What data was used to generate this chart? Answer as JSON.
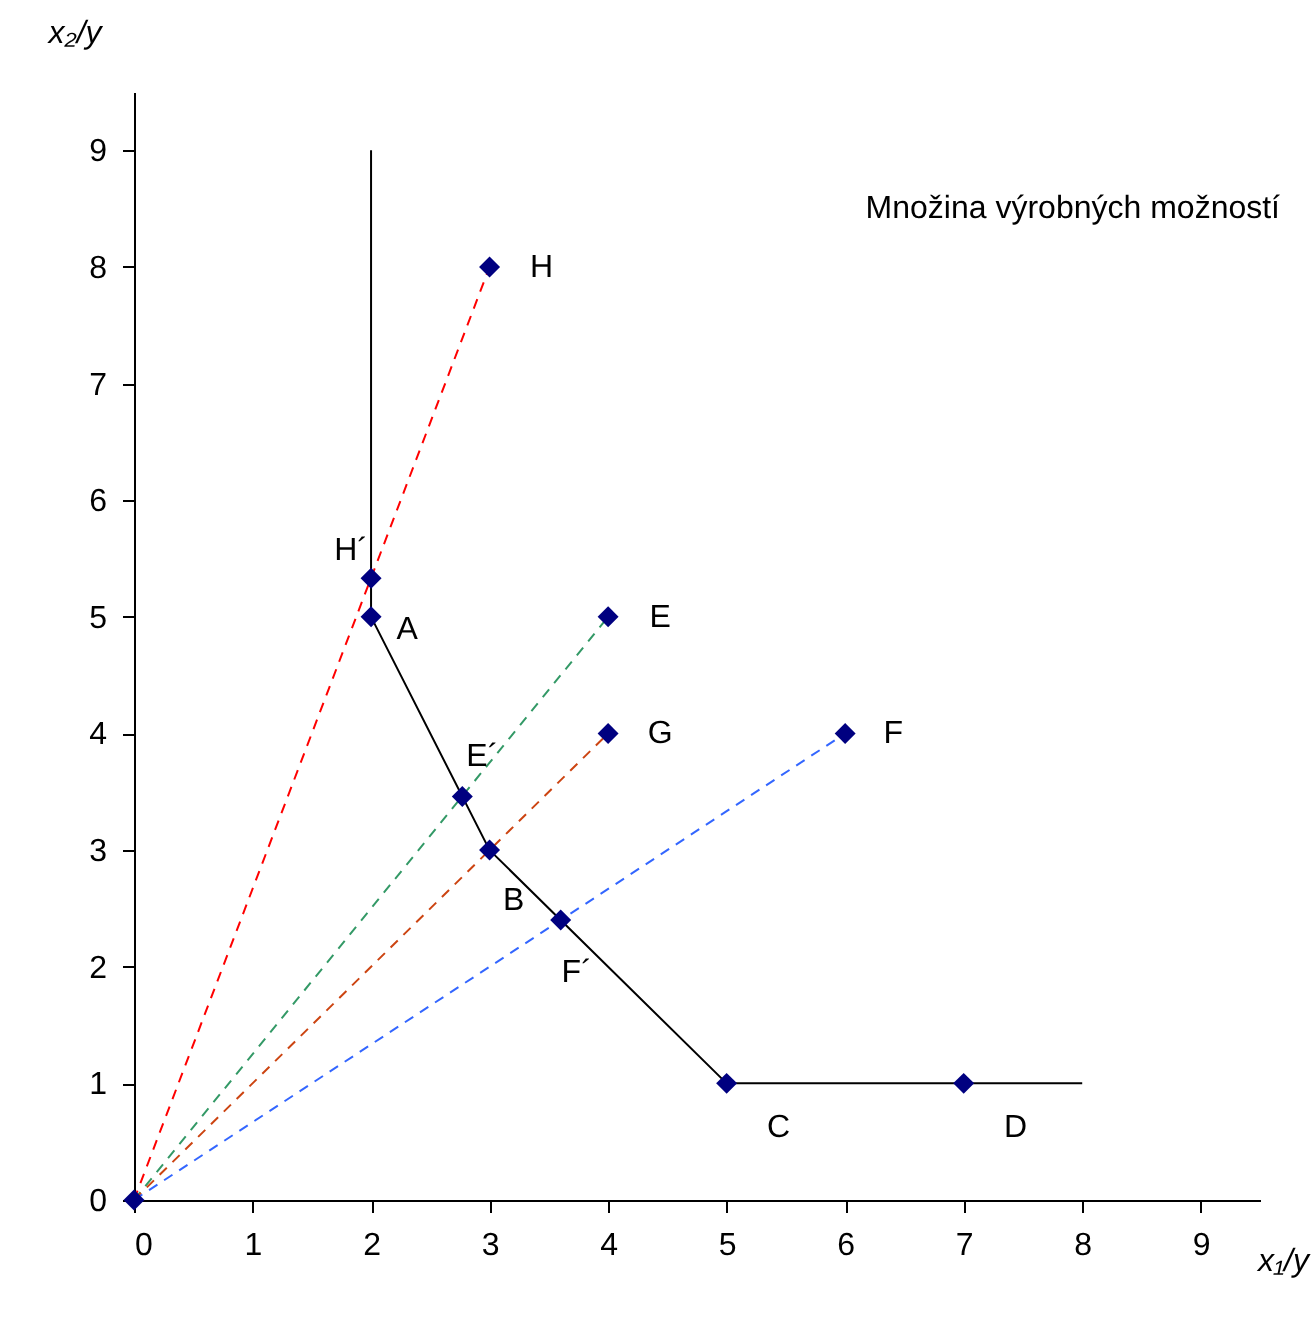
{
  "chart_data": {
    "type": "scatter",
    "xlabel": "x₁/y",
    "ylabel": "x₂/y",
    "xlim": [
      0,
      9.5
    ],
    "ylim": [
      0,
      9.5
    ],
    "xticks": [
      0,
      1,
      2,
      3,
      4,
      5,
      6,
      7,
      8,
      9
    ],
    "yticks": [
      0,
      1,
      2,
      3,
      4,
      5,
      6,
      7,
      8,
      9
    ],
    "grid": false,
    "series": [
      {
        "type": "line",
        "color": "#000000",
        "line_style": "solid",
        "marker": "none",
        "x": [
          2,
          2,
          3,
          5,
          8
        ],
        "values": [
          9,
          5,
          3,
          1,
          1
        ]
      },
      {
        "type": "line",
        "color": "#ff0000",
        "line_style": "dashed",
        "marker": "none",
        "x": [
          0,
          3
        ],
        "values": [
          0,
          8
        ]
      },
      {
        "type": "line",
        "color": "#339966",
        "line_style": "dashed",
        "marker": "none",
        "x": [
          0,
          4
        ],
        "values": [
          0,
          5
        ]
      },
      {
        "type": "line",
        "color": "#cc4411",
        "line_style": "dashed",
        "marker": "none",
        "x": [
          0,
          4
        ],
        "values": [
          0,
          4
        ]
      },
      {
        "type": "line",
        "color": "#3366ff",
        "line_style": "dashed",
        "marker": "none",
        "x": [
          0,
          6
        ],
        "values": [
          0,
          4
        ]
      },
      {
        "color": "#000080",
        "marker": "diamond",
        "x": [
          0,
          2,
          3,
          5,
          7,
          2,
          2.77,
          3.6,
          4,
          4,
          6,
          3
        ],
        "values": [
          0,
          5,
          3,
          1,
          1,
          5.33,
          3.46,
          2.4,
          5,
          4,
          4,
          8
        ]
      }
    ],
    "annotations": [
      {
        "text": "H",
        "x": 3,
        "y": 8
      },
      {
        "text": "H´",
        "x": 2,
        "y": 5.33
      },
      {
        "text": "A",
        "x": 2,
        "y": 5
      },
      {
        "text": "E",
        "x": 4,
        "y": 5
      },
      {
        "text": "E´",
        "x": 2.77,
        "y": 3.46
      },
      {
        "text": "G",
        "x": 4,
        "y": 4
      },
      {
        "text": "B",
        "x": 3,
        "y": 3
      },
      {
        "text": "F´",
        "x": 3.6,
        "y": 2.4
      },
      {
        "text": "F",
        "x": 6,
        "y": 4
      },
      {
        "text": "C",
        "x": 5,
        "y": 1
      },
      {
        "text": "D",
        "x": 7,
        "y": 1
      },
      "Množina výrobných možností"
    ]
  }
}
